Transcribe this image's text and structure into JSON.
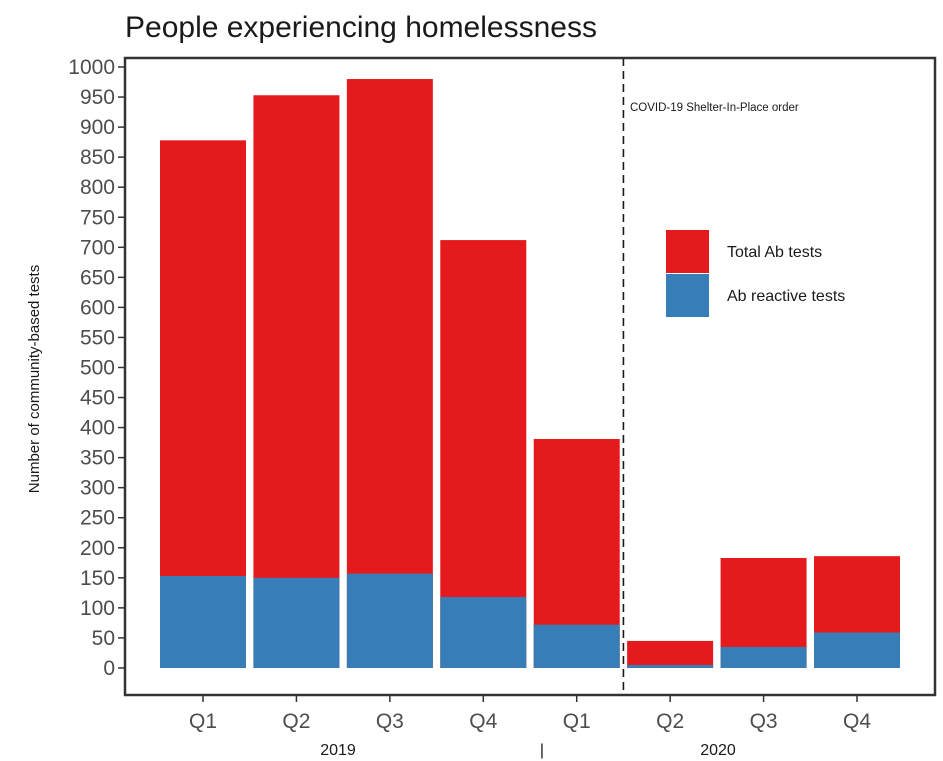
{
  "chart_data": {
    "type": "bar",
    "title": "People experiencing homelessness",
    "xlabel": "",
    "ylabel": "Number of community-based tests",
    "categories": [
      "Q1",
      "Q2",
      "Q3",
      "Q4",
      "Q1",
      "Q2",
      "Q3",
      "Q4"
    ],
    "year_labels": [
      "2019",
      "|",
      "2020"
    ],
    "series": [
      {
        "name": "Total Ab tests",
        "color": "#e41a1c",
        "values": [
          878,
          953,
          980,
          712,
          381,
          45,
          183,
          186
        ]
      },
      {
        "name": "Ab reactive tests",
        "color": "#377eb8",
        "values": [
          153,
          150,
          157,
          118,
          72,
          5,
          35,
          59
        ]
      }
    ],
    "overlay": true,
    "ylim": [
      -45,
      1015
    ],
    "yticks": [
      0,
      50,
      100,
      150,
      200,
      250,
      300,
      350,
      400,
      450,
      500,
      550,
      600,
      650,
      700,
      750,
      800,
      850,
      900,
      950,
      1000
    ],
    "vline_after_category_index": 4,
    "annotation": "COVID-19 Shelter-In-Place order",
    "legend_position": "right",
    "grid": false
  }
}
